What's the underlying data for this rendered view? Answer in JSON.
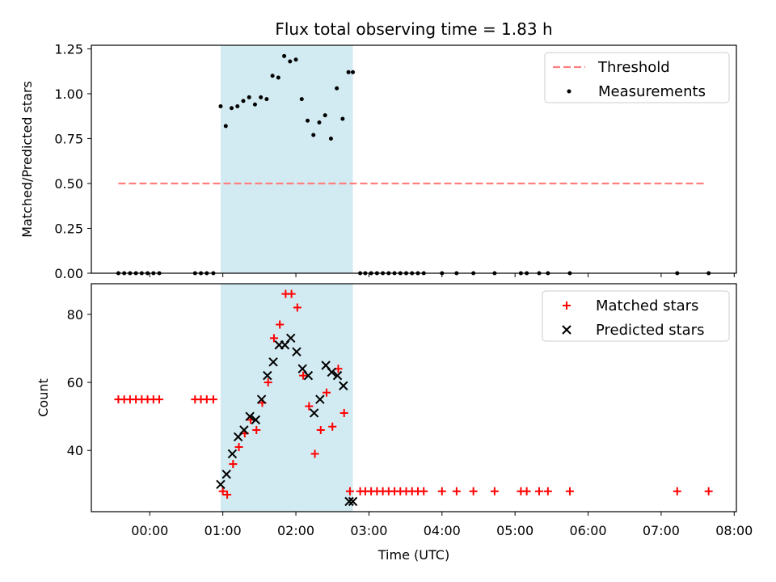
{
  "chart_data": {
    "title": "Flux total observing time = 1.83 h",
    "xlabel": "Time (UTC)",
    "x_unit": "hours UTC",
    "x_ticks": [
      "00:00",
      "01:00",
      "02:00",
      "03:00",
      "04:00",
      "05:00",
      "06:00",
      "07:00",
      "08:00"
    ],
    "x_tick_values": [
      0,
      1,
      2,
      3,
      4,
      5,
      6,
      7,
      8
    ],
    "xlim": [
      -0.8,
      8.03
    ],
    "shaded_span": [
      0.97,
      2.78
    ],
    "shade_color": "#add8e6",
    "panels": [
      {
        "type": "scatter",
        "ylabel": "Matched/Predicted stars",
        "ylim": [
          0,
          1.27
        ],
        "y_ticks": [
          "0.00",
          "0.25",
          "0.50",
          "0.75",
          "1.00",
          "1.25"
        ],
        "y_tick_values": [
          0,
          0.25,
          0.5,
          0.75,
          1.0,
          1.25
        ],
        "threshold": {
          "name": "Threshold",
          "value": 0.5,
          "x_range": [
            -0.43,
            7.6
          ],
          "color": "#ff7f7f"
        },
        "legend": [
          "Threshold",
          "Measurements"
        ],
        "legend_position": "top-right",
        "series": [
          {
            "name": "Measurements",
            "color": "#000000",
            "x": [
              -0.43,
              -0.35,
              -0.27,
              -0.19,
              -0.11,
              -0.03,
              0.05,
              0.13,
              0.62,
              0.7,
              0.78,
              0.87,
              0.97,
              1.04,
              1.12,
              1.2,
              1.28,
              1.36,
              1.44,
              1.52,
              1.6,
              1.68,
              1.76,
              1.84,
              1.92,
              2.0,
              2.08,
              2.16,
              2.24,
              2.32,
              2.4,
              2.48,
              2.56,
              2.64,
              2.72,
              2.78,
              2.88,
              2.95,
              3.03,
              3.11,
              3.19,
              3.27,
              3.35,
              3.43,
              3.51,
              3.59,
              3.67,
              3.75,
              4.0,
              4.2,
              4.43,
              4.72,
              5.08,
              5.16,
              5.33,
              5.45,
              5.75,
              7.22,
              7.65
            ],
            "y": [
              0,
              0,
              0,
              0,
              0,
              0,
              0,
              0,
              0,
              0,
              0,
              0,
              0.93,
              0.82,
              0.92,
              0.93,
              0.96,
              0.98,
              0.94,
              0.98,
              0.97,
              1.1,
              1.09,
              1.21,
              1.18,
              1.19,
              0.97,
              0.85,
              0.77,
              0.84,
              0.88,
              0.75,
              1.03,
              0.86,
              1.12,
              1.12,
              0,
              0,
              0,
              0,
              0,
              0,
              0,
              0,
              0,
              0,
              0,
              0,
              0,
              0,
              0,
              0,
              0,
              0,
              0,
              0,
              0,
              0,
              0
            ]
          }
        ]
      },
      {
        "type": "scatter",
        "ylabel": "Count",
        "ylim": [
          22,
          89
        ],
        "y_ticks": [
          "40",
          "60",
          "80"
        ],
        "y_tick_values": [
          40,
          60,
          80
        ],
        "legend": [
          "Matched stars",
          "Predicted stars"
        ],
        "legend_position": "top-right",
        "series": [
          {
            "name": "Matched stars",
            "color": "#ff0000",
            "marker": "+",
            "x": [
              -0.43,
              -0.35,
              -0.27,
              -0.19,
              -0.11,
              -0.03,
              0.05,
              0.13,
              0.62,
              0.7,
              0.78,
              0.87,
              1.0,
              1.06,
              1.14,
              1.22,
              1.3,
              1.38,
              1.46,
              1.54,
              1.62,
              1.7,
              1.78,
              1.86,
              1.94,
              2.02,
              2.1,
              2.18,
              2.26,
              2.34,
              2.42,
              2.5,
              2.58,
              2.66,
              2.74,
              2.88,
              2.95,
              3.03,
              3.11,
              3.19,
              3.27,
              3.35,
              3.43,
              3.51,
              3.59,
              3.67,
              3.75,
              4.0,
              4.2,
              4.43,
              4.72,
              5.08,
              5.16,
              5.33,
              5.45,
              5.75,
              7.22,
              7.65
            ],
            "y": [
              55,
              55,
              55,
              55,
              55,
              55,
              55,
              55,
              55,
              55,
              55,
              55,
              28,
              27,
              36,
              41,
              45,
              49,
              46,
              54,
              60,
              73,
              77,
              86,
              86,
              82,
              62,
              53,
              39,
              46,
              57,
              47,
              64,
              51,
              28,
              28,
              28,
              28,
              28,
              28,
              28,
              28,
              28,
              28,
              28,
              28,
              28,
              28,
              28,
              28,
              28,
              28,
              28,
              28,
              28,
              28,
              28,
              28
            ]
          },
          {
            "name": "Predicted stars",
            "color": "#000000",
            "marker": "x",
            "x": [
              0.97,
              1.05,
              1.13,
              1.21,
              1.29,
              1.37,
              1.45,
              1.53,
              1.61,
              1.69,
              1.77,
              1.85,
              1.93,
              2.01,
              2.09,
              2.17,
              2.25,
              2.33,
              2.41,
              2.49,
              2.57,
              2.65,
              2.73,
              2.78
            ],
            "y": [
              30,
              33,
              39,
              44,
              46,
              50,
              49,
              55,
              62,
              66,
              71,
              71,
              73,
              69,
              64,
              62,
              51,
              55,
              65,
              63,
              62,
              59,
              25,
              25
            ]
          }
        ]
      }
    ]
  }
}
